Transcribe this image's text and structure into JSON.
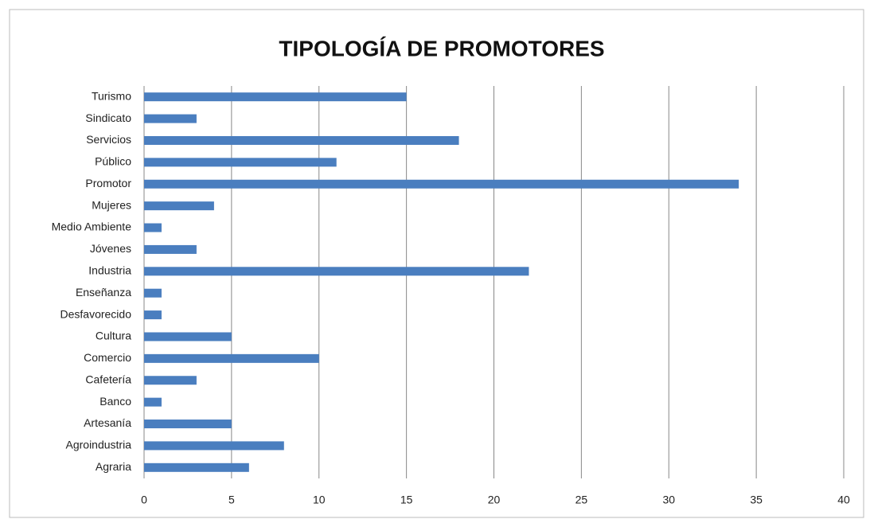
{
  "chart_data": {
    "type": "bar",
    "orientation": "horizontal",
    "title": "TIPOLOGÍA DE PROMOTORES",
    "categories": [
      "Turismo",
      "Sindicato",
      "Servicios",
      "Público",
      "Promotor",
      "Mujeres",
      "Medio Ambiente",
      "Jóvenes",
      "Industria",
      "Enseñanza",
      "Desfavorecido",
      "Cultura",
      "Comercio",
      "Cafetería",
      "Banco",
      "Artesanía",
      "Agroindustria",
      "Agraria"
    ],
    "values": [
      15,
      3,
      18,
      11,
      34,
      4,
      1,
      3,
      22,
      1,
      1,
      5,
      10,
      3,
      1,
      5,
      8,
      6
    ],
    "color": "#4a7ebf",
    "xlim": [
      0,
      40
    ],
    "xticks": [
      0,
      5,
      10,
      15,
      20,
      25,
      30,
      35,
      40
    ],
    "grid": true
  }
}
